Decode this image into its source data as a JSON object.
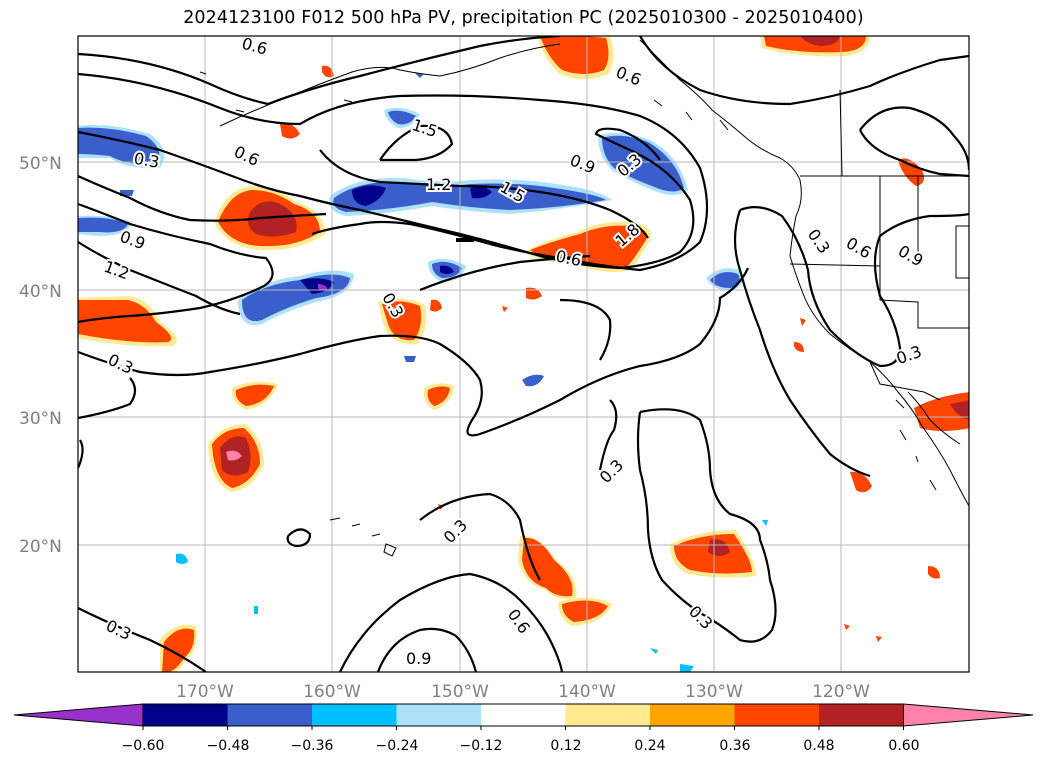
{
  "title": "2024123100 F012 500 hPa PV, precipitation PC (2025010300 - 2025010400)",
  "map": {
    "lon_range": [
      -180,
      -110
    ],
    "lat_range": [
      10,
      60
    ],
    "lat_ticks": [
      "50°N",
      "40°N",
      "30°N",
      "20°N"
    ],
    "lon_ticks": [
      "170°W",
      "160°W",
      "150°W",
      "140°W",
      "130°W",
      "120°W"
    ],
    "grid": true
  },
  "contour_labels": [
    "0.6",
    "0.6",
    "1.5",
    "0.3",
    "0.3",
    "0.9",
    "0.6",
    "1.2",
    "1.5",
    "0.9",
    "1.2",
    "1.8",
    "0.6",
    "0.3",
    "0.6",
    "0.9",
    "0.3",
    "0.3",
    "0.3",
    "0.3",
    "0.3",
    "0.6",
    "0.3",
    "0.3",
    "0.9"
  ],
  "colorbar": {
    "ticks": [
      "−0.60",
      "−0.48",
      "−0.36",
      "−0.24",
      "−0.12",
      "0.12",
      "0.24",
      "0.36",
      "0.48",
      "0.60"
    ],
    "colors": [
      "#9932CC",
      "#00008B",
      "#3A5FCD",
      "#00BFFF",
      "#ADE1FA",
      "#FFFFFF",
      "#FFE991",
      "#FFA500",
      "#FF4500",
      "#B22222",
      "#FF82AB"
    ],
    "extend": "both"
  }
}
